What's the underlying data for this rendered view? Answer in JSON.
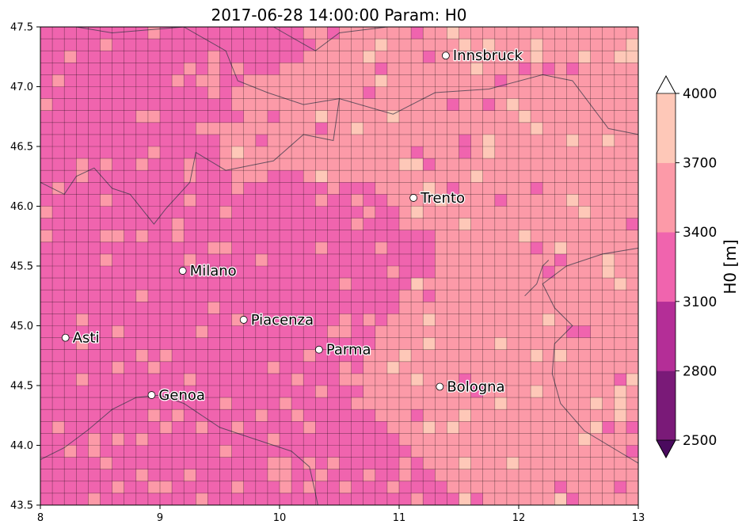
{
  "chart_data": {
    "type": "heatmap",
    "title": "2017-06-28 14:00:00 Param: H0",
    "xlim": [
      8,
      13
    ],
    "ylim": [
      43.5,
      47.5
    ],
    "x_ticks": [
      8,
      9,
      10,
      11,
      12,
      13
    ],
    "y_ticks": [
      43.5,
      44.0,
      44.5,
      45.0,
      45.5,
      46.0,
      46.5,
      47.0,
      47.5
    ],
    "x_tick_labels": [
      "8",
      "9",
      "10",
      "11",
      "12",
      "13"
    ],
    "y_tick_labels": [
      "43.5",
      "44.0",
      "44.5",
      "45.0",
      "45.5",
      "46.0",
      "46.5",
      "47.0",
      "47.5"
    ],
    "grid": true,
    "colorbar": {
      "label": "H0  [m]",
      "levels": [
        2500,
        2800,
        3100,
        3400,
        3700,
        4000
      ],
      "level_labels": [
        "2500",
        "2800",
        "3100",
        "3400",
        "3700",
        "4000"
      ],
      "colors": [
        "#7a1a78",
        "#b42e97",
        "#f064ae",
        "#fc9aa8",
        "#fec8b8"
      ],
      "under_color": "#4a0a5e",
      "over_color": "#ffffff",
      "extend": "both"
    },
    "palette": {
      "white": "#fdf3f3"
    },
    "cities": [
      {
        "name": "Innsbruck",
        "lon": 11.39,
        "lat": 47.26
      },
      {
        "name": "Trento",
        "lon": 11.12,
        "lat": 46.07
      },
      {
        "name": "Milano",
        "lon": 9.19,
        "lat": 45.46
      },
      {
        "name": "Piacenza",
        "lon": 9.7,
        "lat": 45.05
      },
      {
        "name": "Asti",
        "lon": 8.21,
        "lat": 44.9
      },
      {
        "name": "Parma",
        "lon": 10.33,
        "lat": 44.8
      },
      {
        "name": "Bologna",
        "lon": 11.34,
        "lat": 44.49
      },
      {
        "name": "Genoa",
        "lon": 8.93,
        "lat": 44.42
      }
    ],
    "grid_cols": 50,
    "grid_rows": 40,
    "cell_rows": [
      "33333333343333333333334444444444444444444444444444",
      "33333333333333333333333444444444444444444444444445",
      "33333333333333333333334444444444444444444444444445",
      "33333333333333333333444444444444444444444444444444",
      "33333333333333333444444444444444444444444444444444",
      "33333333333333334444444444444444444444444444444444",
      "33333333333333334444444444444444444444444444444444",
      "33333333333333333444444444444444444444444444444444",
      "33333333333333444444444444444444444444444444444444",
      "33333333333333344444444444444444444444444444444444",
      "33333333333333444444444444444444444444444444444444",
      "33333333333333344444444444444444444444444444444444",
      "33333333333333333333334444444444444444444444444444",
      "33333333333333333333333333334444444444444444444444",
      "33333333333333333333333333333444444444444444444444",
      "33333333333333333333333333333344444444444444444444",
      "33333333333333333333333333333334444444444444444444",
      "33333333333333333333333333333333444444444444444444",
      "33333333333333333333333333333333344444444444444444",
      "33333333333333333333333333333333344444444444444444",
      "33333333333333333333333333333333344444444444444444",
      "33333333333333333333333333333334444444444444444444",
      "33333333333333333333333333333344444444444444444444",
      "33333333333333333333333333333344444444444444444444",
      "33333333333333333333333333333444444444444444444444",
      "33333333333333333333333333334444444444444444444444",
      "33333333333333333333333333334444444444444444444444",
      "33333333333333333333333333344444444444444444444444",
      "33333333333333333333333333344444444444444444444444",
      "33333333333333333333333333344444444444444444444444",
      "33333333333333333333333333344444444444444444444444",
      "33333333333333333333333333344444444444444444444444",
      "33333333333333333333333333334444444444444444444444",
      "33333333333333333333333333333444444444444444444444",
      "33333333333333333333333333333344444444444444444444",
      "33333333333333333333333333333334444444444444444444",
      "33333333333333333333333333333333444444444444444444",
      "33333333333333333333333333333333344444444444444444",
      "33333333333333333333333333333333334444444444444444",
      "33333333333333333333333333333333333444444444444444"
    ]
  }
}
